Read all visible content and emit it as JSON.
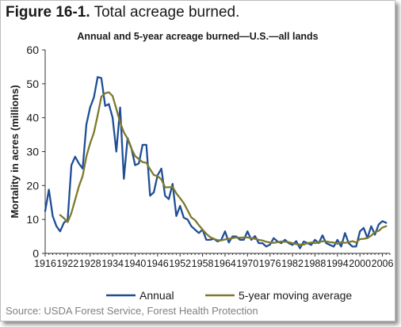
{
  "figure": {
    "number": "Figure 16-1.",
    "caption": "Total acreage burned.",
    "source": "Source: USDA Forest Service, Forest Health Protection"
  },
  "colors": {
    "annual": "#1f4e96",
    "average": "#7d7a2e",
    "axis": "#333333",
    "text": "#1a1a1a"
  },
  "chart_data": {
    "type": "line",
    "title": "Annual and 5-year acreage burned—U.S.—all lands",
    "xlabel": "",
    "ylabel": "Mortality in acres (millions)",
    "xlim": [
      1916,
      2008
    ],
    "ylim": [
      0,
      60
    ],
    "x_ticks": [
      1916,
      1922,
      1928,
      1934,
      1940,
      1946,
      1952,
      1958,
      1964,
      1970,
      1976,
      1982,
      1988,
      1994,
      2000,
      2006
    ],
    "y_ticks": [
      0,
      10,
      20,
      30,
      40,
      50,
      60
    ],
    "grid": false,
    "legend_position": "bottom",
    "series": [
      {
        "name": "Annual",
        "x": [
          1916,
          1917,
          1918,
          1919,
          1920,
          1921,
          1922,
          1923,
          1924,
          1925,
          1926,
          1927,
          1928,
          1929,
          1930,
          1931,
          1932,
          1933,
          1934,
          1935,
          1936,
          1937,
          1938,
          1939,
          1940,
          1941,
          1942,
          1943,
          1944,
          1945,
          1946,
          1947,
          1948,
          1949,
          1950,
          1951,
          1952,
          1953,
          1954,
          1955,
          1956,
          1957,
          1958,
          1959,
          1960,
          1961,
          1962,
          1963,
          1964,
          1965,
          1966,
          1967,
          1968,
          1969,
          1970,
          1971,
          1972,
          1973,
          1974,
          1975,
          1976,
          1977,
          1978,
          1979,
          1980,
          1981,
          1982,
          1983,
          1984,
          1985,
          1986,
          1987,
          1988,
          1989,
          1990,
          1991,
          1992,
          1993,
          1994,
          1995,
          1996,
          1997,
          1998,
          1999,
          2000,
          2001,
          2002,
          2003,
          2004,
          2005,
          2006,
          2007
        ],
        "values": [
          12.5,
          18.8,
          11,
          8,
          6.5,
          9,
          10,
          26,
          28.5,
          26.5,
          25,
          38,
          43,
          46,
          52,
          51.7,
          43.5,
          44,
          40,
          30,
          43,
          22,
          34,
          31,
          26,
          26.5,
          32,
          32,
          17,
          18,
          23,
          25,
          17,
          16,
          20.5,
          11,
          14,
          10.5,
          10,
          8,
          7,
          6,
          7,
          4,
          4,
          4.3,
          3.5,
          4,
          6.5,
          3.2,
          5,
          5,
          4,
          4,
          6.5,
          4,
          5.1,
          3,
          3,
          2,
          2.6,
          4.5,
          3.5,
          3,
          4,
          3,
          2.5,
          3.6,
          1.5,
          3.5,
          3,
          2.5,
          4,
          3,
          5.3,
          3,
          2.5,
          2,
          4,
          2,
          6,
          3,
          2,
          2,
          6.5,
          7.5,
          4.5,
          8,
          5.5,
          8.5,
          9.5,
          9
        ]
      },
      {
        "name": "5-year moving average",
        "x": [
          1920,
          1921,
          1922,
          1923,
          1924,
          1925,
          1926,
          1927,
          1928,
          1929,
          1930,
          1931,
          1932,
          1933,
          1934,
          1935,
          1936,
          1937,
          1938,
          1939,
          1940,
          1941,
          1942,
          1943,
          1944,
          1945,
          1946,
          1947,
          1948,
          1949,
          1950,
          1951,
          1952,
          1953,
          1954,
          1955,
          1956,
          1957,
          1958,
          1959,
          1960,
          1961,
          1962,
          1963,
          1964,
          1965,
          1966,
          1967,
          1968,
          1969,
          1970,
          1971,
          1972,
          1973,
          1974,
          1975,
          1976,
          1977,
          1978,
          1979,
          1980,
          1981,
          1982,
          1983,
          1984,
          1985,
          1986,
          1987,
          1988,
          1989,
          1990,
          1991,
          1992,
          1993,
          1994,
          1995,
          1996,
          1997,
          1998,
          1999,
          2000,
          2001,
          2002,
          2003,
          2004,
          2005,
          2006,
          2007
        ],
        "values": [
          11.3,
          10.4,
          9.2,
          11.9,
          15.8,
          19.8,
          22.8,
          28.6,
          32.4,
          35.6,
          40.7,
          46.2,
          47.2,
          47.5,
          46.4,
          42.6,
          38.6,
          35.7,
          33.8,
          30.9,
          28.7,
          27.8,
          26.9,
          26.7,
          24.8,
          23.1,
          22.8,
          21.8,
          19.5,
          19.5,
          19.6,
          17.7,
          16.3,
          14.8,
          12.7,
          10.6,
          9.8,
          8.3,
          7.0,
          5.8,
          4.8,
          4.3,
          3.9,
          3.8,
          4.1,
          4.3,
          4.5,
          4.7,
          4.6,
          4.7,
          4.7,
          4.5,
          4.3,
          4.0,
          3.8,
          3.4,
          3.2,
          3.1,
          3.3,
          3.5,
          3.4,
          3.3,
          3.0,
          2.7,
          2.6,
          2.6,
          3.0,
          3.2,
          3.0,
          3.2,
          3.6,
          3.5,
          3.3,
          3.2,
          2.8,
          3.3,
          3.1,
          3.3,
          3.6,
          3.2,
          4.2,
          4.3,
          4.5,
          5.2,
          6.3,
          6.6,
          7.6,
          8.0
        ]
      }
    ]
  }
}
